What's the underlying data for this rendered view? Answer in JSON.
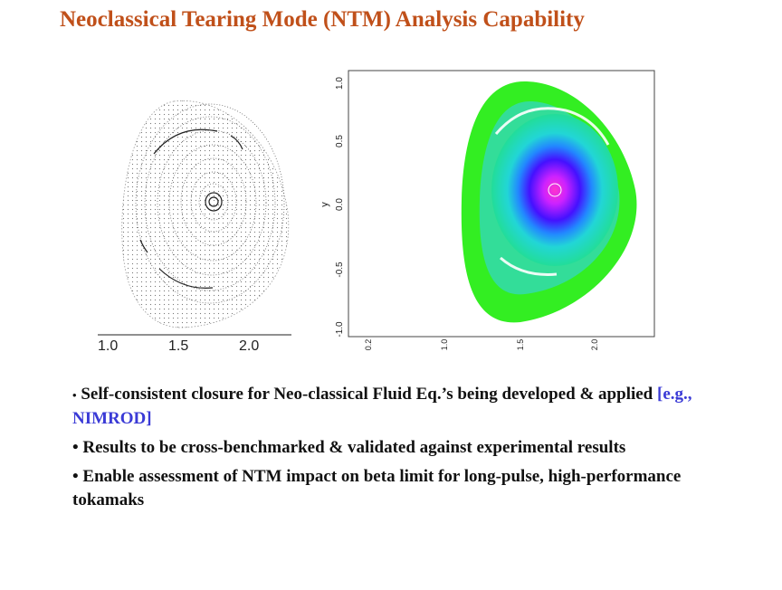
{
  "title": "Neoclassical Tearing Mode (NTM) Analysis Capability",
  "left_plot": {
    "x_ticks": [
      "1.0",
      "1.5",
      "2.0"
    ]
  },
  "right_plot": {
    "y_label": "y",
    "y_ticks": [
      "1.0",
      "0.5",
      "0.0",
      "-0.5",
      "-1.0"
    ],
    "x_ticks": [
      "0.2",
      "1.0",
      "1.5",
      "2.0"
    ]
  },
  "bullets": [
    {
      "text": "Self-consistent closure for Neo-classical Fluid Eq.’s being developed & applied ",
      "ref": "[e.g., NIMROD]"
    },
    {
      "text": "Results to be cross-benchmarked & validated against experimental results",
      "ref": ""
    },
    {
      "text": "Enable assessment of NTM impact on beta limit for long-pulse, high-performance tokamaks",
      "ref": ""
    }
  ],
  "colors": {
    "title": "#c0501a",
    "ref": "#3a3ad6"
  }
}
